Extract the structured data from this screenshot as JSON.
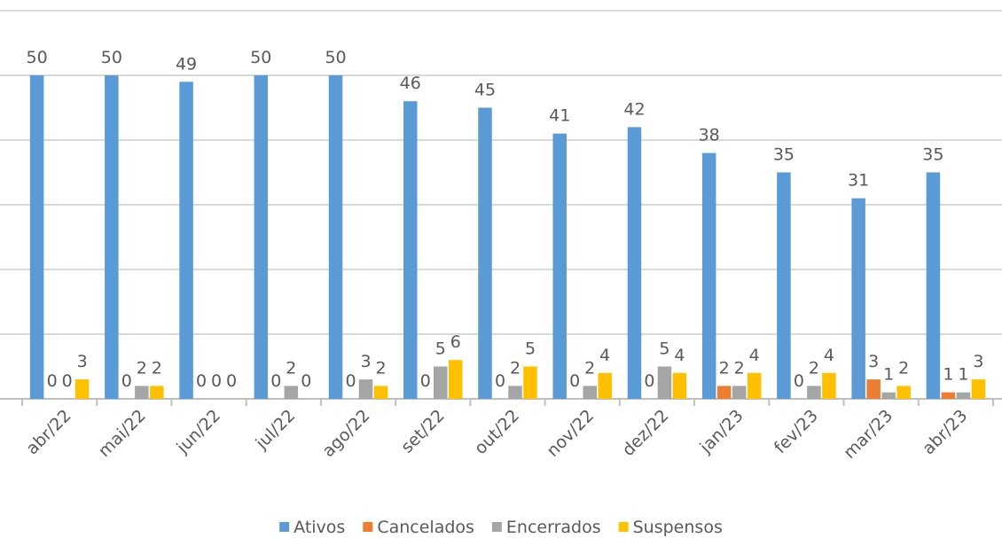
{
  "chart_data": {
    "type": "bar",
    "categories": [
      "abr/22",
      "mai/22",
      "jun/22",
      "jul/22",
      "ago/22",
      "set/22",
      "out/22",
      "nov/22",
      "dez/22",
      "jan/23",
      "fev/23",
      "mar/23",
      "abr/23"
    ],
    "series": [
      {
        "name": "Ativos",
        "color": "#5b9bd5",
        "values": [
          50,
          50,
          49,
          50,
          50,
          46,
          45,
          41,
          42,
          38,
          35,
          31,
          35
        ]
      },
      {
        "name": "Cancelados",
        "color": "#ed7d31",
        "values": [
          0,
          0,
          0,
          0,
          0,
          0,
          0,
          0,
          0,
          2,
          0,
          3,
          1
        ]
      },
      {
        "name": "Encerrados",
        "color": "#a5a5a5",
        "values": [
          0,
          2,
          0,
          2,
          3,
          5,
          2,
          2,
          5,
          2,
          2,
          1,
          1
        ]
      },
      {
        "name": "Suspensos",
        "color": "#ffc000",
        "values": [
          3,
          2,
          0,
          0,
          2,
          6,
          5,
          4,
          4,
          4,
          4,
          2,
          3
        ]
      }
    ],
    "ylim": [
      0,
      60
    ],
    "yticks": [
      0,
      10,
      20,
      30,
      40,
      50,
      60
    ],
    "grid": true,
    "legend": "bottom"
  }
}
